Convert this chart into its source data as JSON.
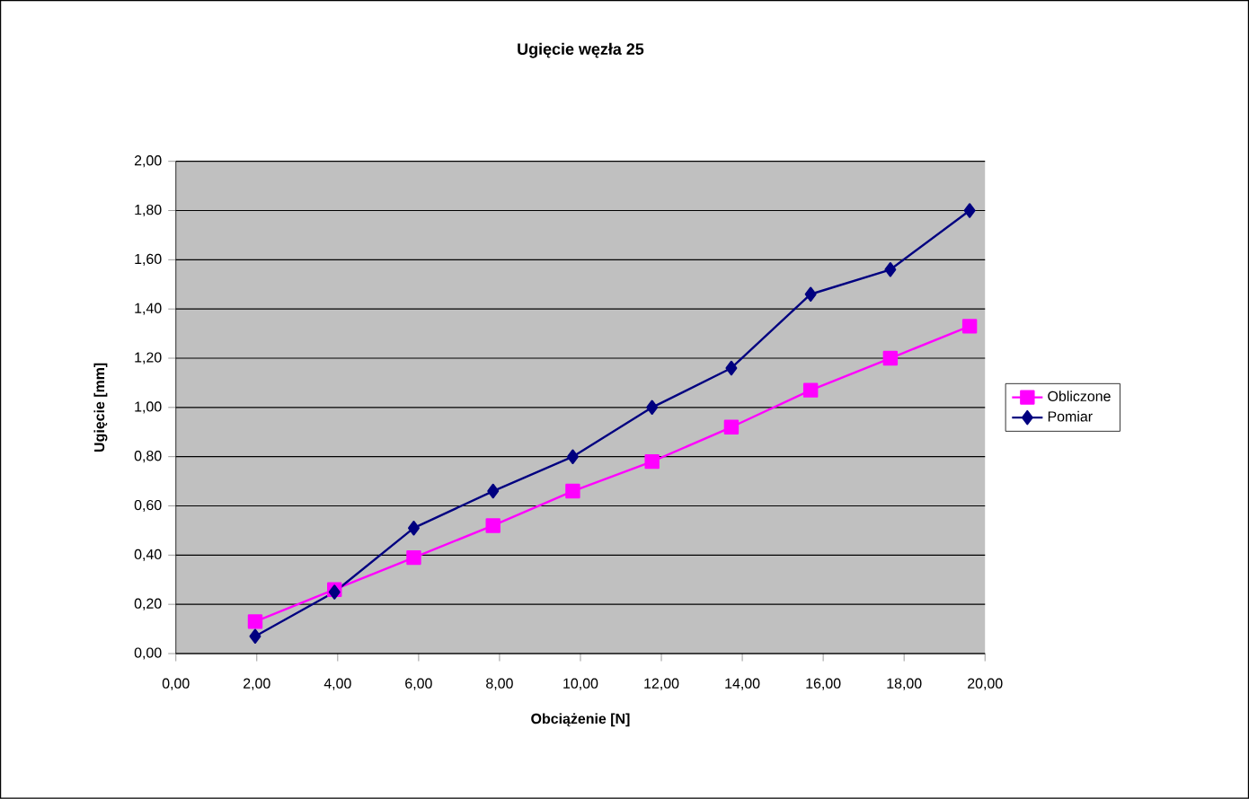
{
  "chart_data": {
    "type": "line",
    "title": "Ugięcie węzła 25",
    "xlabel": "Obciążenie [N]",
    "ylabel": "Ugięcie [mm]",
    "x": [
      1.96,
      3.92,
      5.88,
      7.84,
      9.81,
      11.77,
      13.73,
      15.69,
      17.66,
      19.62
    ],
    "series": [
      {
        "name": "Obliczone",
        "color": "#ff00ff",
        "marker": "square",
        "values": [
          0.13,
          0.26,
          0.39,
          0.52,
          0.66,
          0.78,
          0.92,
          1.07,
          1.2,
          1.33
        ]
      },
      {
        "name": "Pomiar",
        "color": "#000080",
        "marker": "diamond",
        "values": [
          0.07,
          0.25,
          0.51,
          0.66,
          0.8,
          1.0,
          1.16,
          1.46,
          1.56,
          1.8
        ]
      }
    ],
    "xlim": [
      0,
      20
    ],
    "ylim": [
      0,
      2
    ],
    "xticks": [
      {
        "value": 0,
        "label": "0,00"
      },
      {
        "value": 2,
        "label": "2,00"
      },
      {
        "value": 4,
        "label": "4,00"
      },
      {
        "value": 6,
        "label": "6,00"
      },
      {
        "value": 8,
        "label": "8,00"
      },
      {
        "value": 10,
        "label": "10,00"
      },
      {
        "value": 12,
        "label": "12,00"
      },
      {
        "value": 14,
        "label": "14,00"
      },
      {
        "value": 16,
        "label": "16,00"
      },
      {
        "value": 18,
        "label": "18,00"
      },
      {
        "value": 20,
        "label": "20,00"
      }
    ],
    "yticks": [
      {
        "value": 0,
        "label": "0,00"
      },
      {
        "value": 0.2,
        "label": "0,20"
      },
      {
        "value": 0.4,
        "label": "0,40"
      },
      {
        "value": 0.6,
        "label": "0,60"
      },
      {
        "value": 0.8,
        "label": "0,80"
      },
      {
        "value": 1,
        "label": "1,00"
      },
      {
        "value": 1.2,
        "label": "1,20"
      },
      {
        "value": 1.4,
        "label": "1,40"
      },
      {
        "value": 1.6,
        "label": "1,60"
      },
      {
        "value": 1.8,
        "label": "1,80"
      },
      {
        "value": 2,
        "label": "2,00"
      }
    ],
    "grid": "y",
    "legend": "right",
    "line_style": "solid"
  }
}
